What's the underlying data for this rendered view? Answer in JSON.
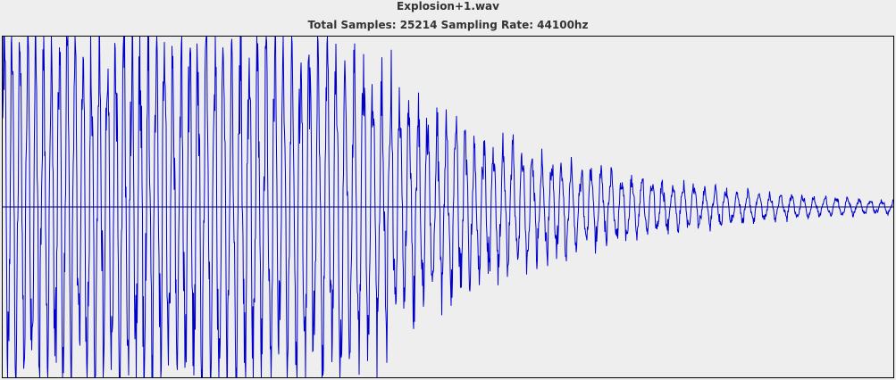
{
  "title": "Explosion+1.wav",
  "subtitle": "Total Samples: 25214  Sampling Rate: 44100hz",
  "waveform_color": "#0000cc",
  "axis_color": "#000080",
  "total_samples": 25214,
  "sampling_rate_hz": 44100
}
